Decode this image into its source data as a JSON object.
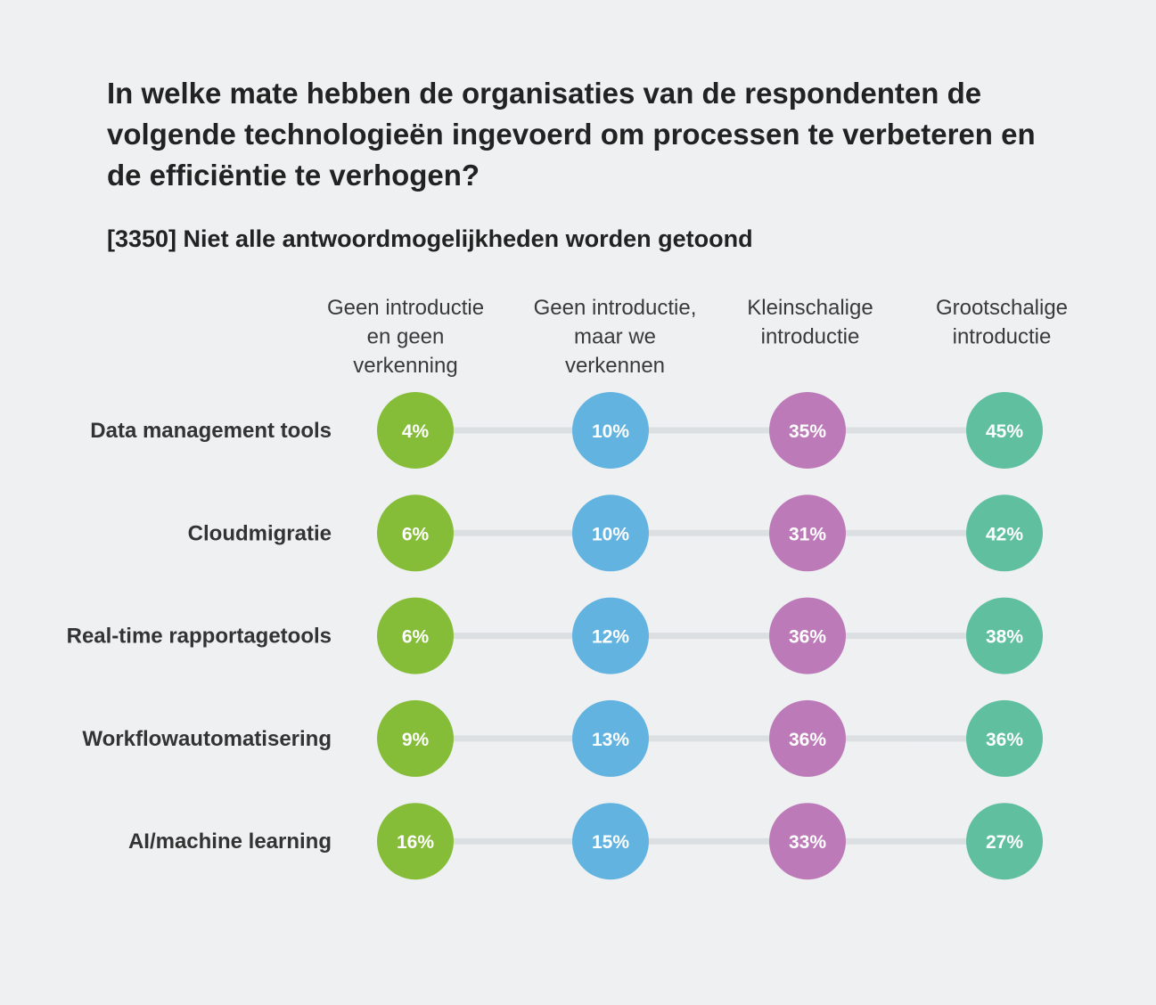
{
  "header": {
    "title": "In welke mate hebben de organisaties van de respondenten de volgende technologieën ingevoerd om processen te verbeteren en de efficiëntie te verhogen?",
    "subtitle": "[3350] Niet alle antwoordmogelijkheden worden getoond"
  },
  "chart_data": {
    "type": "table",
    "title": "In welke mate hebben de organisaties van de respondenten de volgende technologieën ingevoerd om processen te verbeteren en de efficiëntie te verhogen?",
    "subtitle": "[3350] Niet alle antwoordmogelijkheden worden getoond",
    "columns": [
      {
        "label_lines": [
          "Geen introductie",
          "en geen",
          "verkenning"
        ],
        "color": "#86bd38"
      },
      {
        "label_lines": [
          "Geen introductie,",
          "maar we",
          "verkennen"
        ],
        "color": "#62b3e0"
      },
      {
        "label_lines": [
          "Kleinschalige",
          "introductie"
        ],
        "color": "#bd7ab8"
      },
      {
        "label_lines": [
          "Grootschalige",
          "introductie"
        ],
        "color": "#5fbf9f"
      }
    ],
    "rows": [
      {
        "label": "Data management tools",
        "values": [
          4,
          10,
          35,
          45
        ]
      },
      {
        "label": "Cloudmigratie",
        "values": [
          6,
          10,
          31,
          42
        ]
      },
      {
        "label": "Real-time rapportagetools",
        "values": [
          6,
          12,
          36,
          38
        ]
      },
      {
        "label": "Workflowautomatisering",
        "values": [
          9,
          13,
          36,
          36
        ]
      },
      {
        "label": "AI/machine learning",
        "values": [
          16,
          15,
          33,
          27
        ]
      }
    ],
    "unit": "%",
    "connector_color": "#dcdfe2"
  }
}
